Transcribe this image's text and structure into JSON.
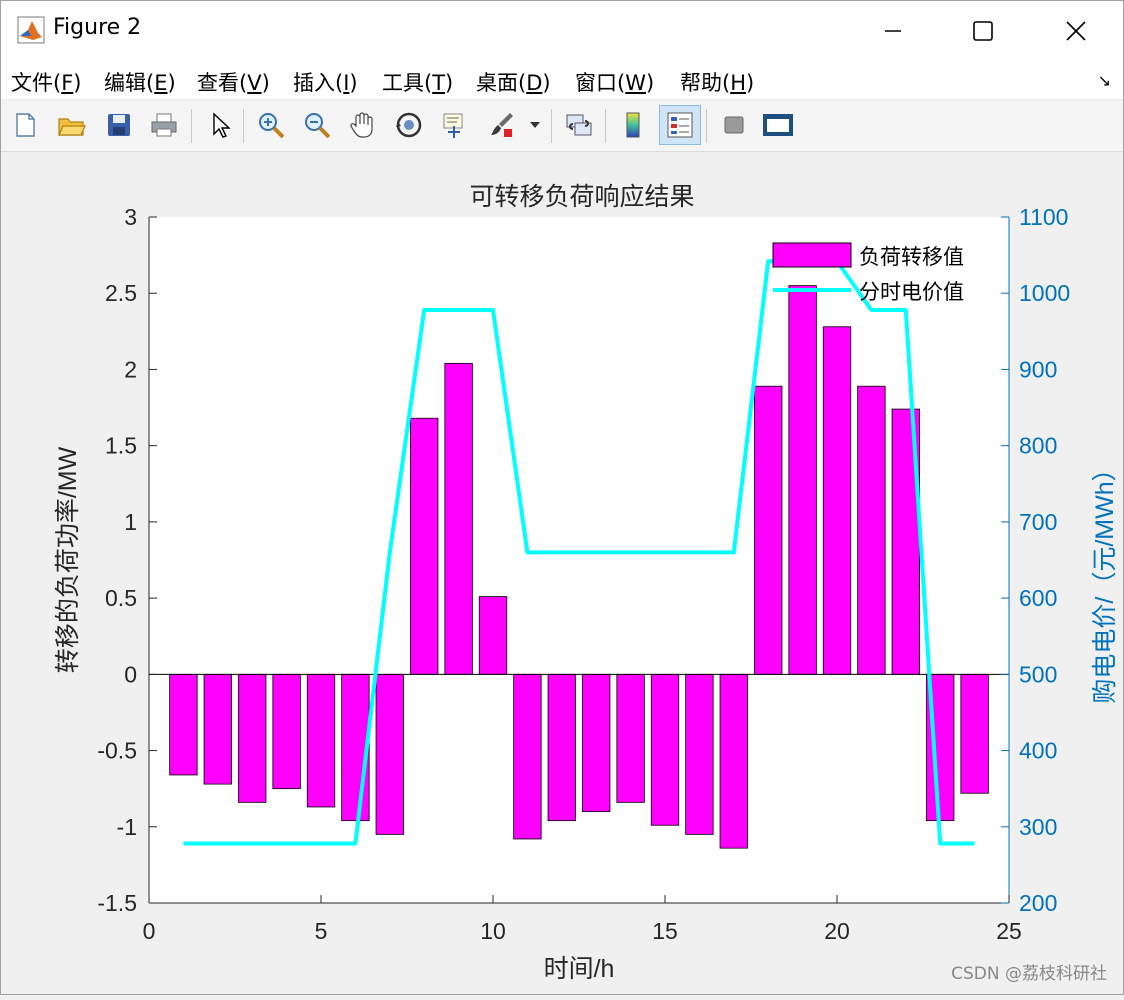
{
  "window": {
    "title": "Figure 2"
  },
  "menu": [
    {
      "text": "文件(",
      "key": "F",
      "end": ")"
    },
    {
      "text": "编辑(",
      "key": "E",
      "end": ")"
    },
    {
      "text": "查看(",
      "key": "V",
      "end": ")"
    },
    {
      "text": "插入(",
      "key": "I",
      "end": ")"
    },
    {
      "text": "工具(",
      "key": "T",
      "end": ")"
    },
    {
      "text": "桌面(",
      "key": "D",
      "end": ")"
    },
    {
      "text": "窗口(",
      "key": "W",
      "end": ")"
    },
    {
      "text": "帮助(",
      "key": "H",
      "end": ")"
    }
  ],
  "toolbar": {
    "icons": [
      "new-file-icon",
      "open-folder-icon",
      "save-icon",
      "print-icon",
      "pointer-icon",
      "zoom-in-icon",
      "zoom-out-icon",
      "pan-hand-icon",
      "rotate-3d-icon",
      "data-cursor-icon",
      "brush-icon",
      "link-plot-icon",
      "colorbar-icon",
      "legend-icon",
      "hide-plot-tools-icon",
      "show-plot-tools-icon"
    ]
  },
  "chart_data": {
    "type": "bar",
    "title": "可转移负荷响应结果",
    "xlabel": "时间/h",
    "ylabel": "转移的负荷功率/MW",
    "ylabel_right": "购电电价/（元/MWh）",
    "xlim": [
      0,
      25
    ],
    "ylim": [
      -1.5,
      3
    ],
    "ylim_right": [
      200,
      1100
    ],
    "x_ticks": [
      "0",
      "5",
      "10",
      "15",
      "20",
      "25"
    ],
    "y_ticks": [
      "-1.5",
      "-1",
      "-0.5",
      "0",
      "0.5",
      "1",
      "1.5",
      "2",
      "2.5",
      "3"
    ],
    "y_ticks_right": [
      "200",
      "300",
      "400",
      "500",
      "600",
      "700",
      "800",
      "900",
      "1000",
      "1100"
    ],
    "grid": false,
    "legend_position": "top-right",
    "series": [
      {
        "name": "负荷转移值",
        "kind": "bar",
        "axis": "left",
        "color": "#ff00ff",
        "x": [
          1,
          2,
          3,
          4,
          5,
          6,
          7,
          8,
          9,
          10,
          11,
          12,
          13,
          14,
          15,
          16,
          17,
          18,
          19,
          20,
          21,
          22,
          23,
          24
        ],
        "values": [
          -0.66,
          -0.72,
          -0.84,
          -0.75,
          -0.87,
          -0.96,
          -1.05,
          1.68,
          2.04,
          0.51,
          -1.08,
          -0.96,
          -0.9,
          -0.84,
          -0.99,
          -1.05,
          -1.14,
          1.89,
          2.55,
          2.28,
          1.89,
          1.74,
          -0.96,
          -0.78
        ]
      },
      {
        "name": "分时电价值",
        "kind": "line",
        "axis": "right",
        "color": "#00ffff",
        "x": [
          1,
          2,
          3,
          4,
          5,
          6,
          7,
          8,
          9,
          10,
          11,
          12,
          13,
          14,
          15,
          16,
          17,
          18,
          19,
          20,
          21,
          22,
          23,
          24
        ],
        "values": [
          278,
          278,
          278,
          278,
          278,
          278,
          660,
          978,
          978,
          978,
          660,
          660,
          660,
          660,
          660,
          660,
          660,
          1042,
          1042,
          1042,
          978,
          978,
          278,
          278
        ]
      }
    ]
  },
  "watermark": "CSDN @荔枝科研社"
}
